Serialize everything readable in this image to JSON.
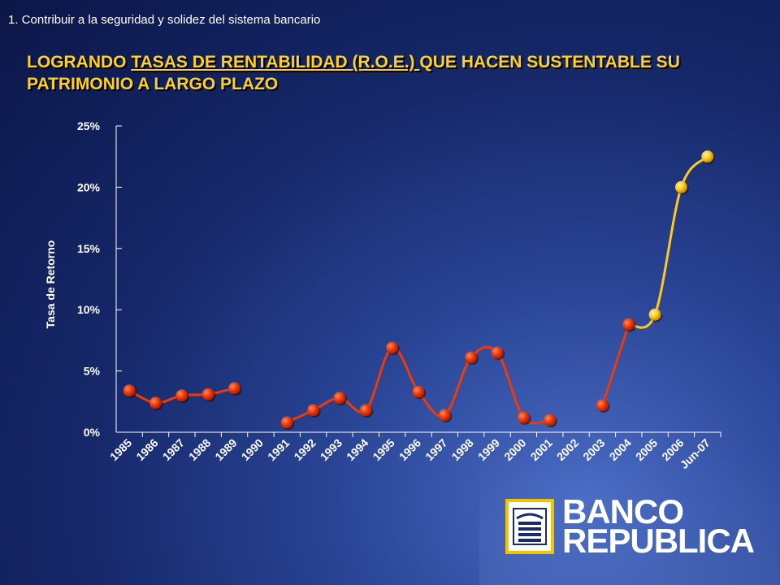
{
  "header": {
    "section": "1.  Contribuir a la seguridad y solidez del sistema  bancario",
    "title_pre": "LOGRANDO ",
    "title_underlined": "TASAS DE RENTABILIDAD (R.O.E.) ",
    "title_post": "QUE HACEN SUSTENTABLE SU PATRIMONIO A LARGO PLAZO"
  },
  "logo": {
    "line1": "BANCO",
    "line2": "REPUBLICA",
    "icon": "bank-building-icon"
  },
  "colors": {
    "red": "#ee3a0a",
    "yellow": "#ffc81e",
    "title": "#ffd21e",
    "axis": "#ffffff"
  },
  "chart_data": {
    "type": "line",
    "ylabel": "Tasa de Retorno",
    "xlabel": "",
    "ylim": [
      0,
      25
    ],
    "yticks": [
      "0%",
      "5%",
      "10%",
      "15%",
      "20%",
      "25%"
    ],
    "categories": [
      "1985",
      "1986",
      "1987",
      "1988",
      "1989",
      "1990",
      "1991",
      "1992",
      "1993",
      "1994",
      "1995",
      "1996",
      "1997",
      "1998",
      "1999",
      "2000",
      "2001",
      "2002",
      "2003",
      "2004",
      "2005",
      "2006",
      "Jun-07"
    ],
    "series": [
      {
        "color": "red",
        "values": [
          3.4,
          2.4,
          3.0,
          3.1,
          3.6,
          null,
          0.8,
          1.8,
          2.8,
          1.8,
          6.9,
          3.3,
          1.4,
          6.1,
          6.5,
          1.2,
          1.0,
          null,
          2.2,
          8.8,
          null,
          null,
          null
        ]
      },
      {
        "color": "yellow",
        "values": [
          null,
          null,
          null,
          null,
          null,
          null,
          null,
          null,
          null,
          null,
          null,
          null,
          null,
          null,
          null,
          null,
          null,
          null,
          null,
          8.8,
          9.6,
          20.0,
          22.5
        ]
      }
    ],
    "grid": false,
    "legend": "none"
  }
}
